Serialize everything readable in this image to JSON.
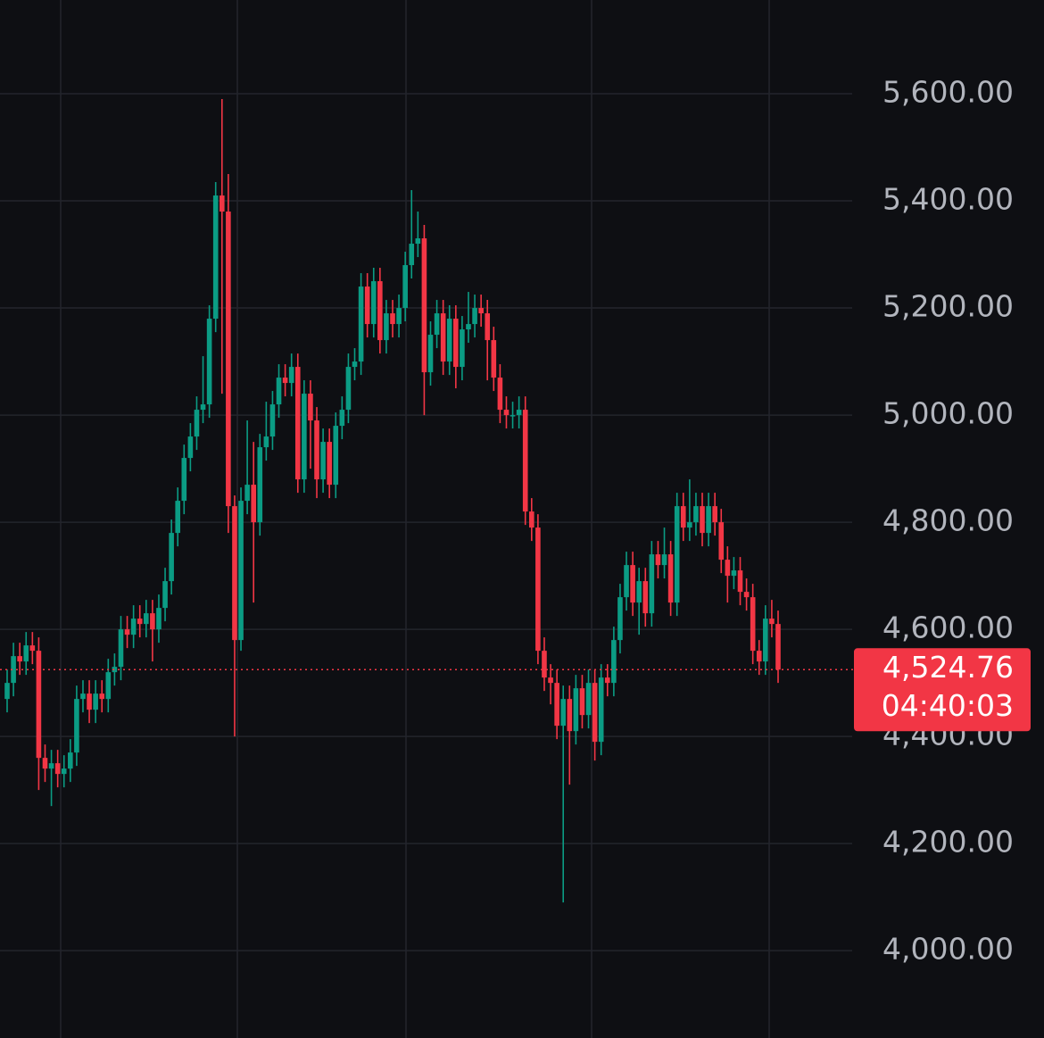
{
  "chart_data": {
    "type": "candlestick",
    "open": [
      4470,
      4500,
      4550,
      4540,
      4570,
      4560,
      4360,
      4340,
      4350,
      4330,
      4340,
      4370,
      4470,
      4480,
      4450,
      4480,
      4470,
      4520,
      4530,
      4600,
      4590,
      4620,
      4610,
      4630,
      4600,
      4640,
      4690,
      4780,
      4840,
      4920,
      4960,
      5010,
      5020,
      5180,
      5410,
      5380,
      4830,
      4580,
      4840,
      4870,
      4800,
      4940,
      4960,
      5020,
      5070,
      5060,
      5090,
      4880,
      5040,
      4990,
      4880,
      4950,
      4870,
      4980,
      5010,
      5090,
      5100,
      5240,
      5170,
      5250,
      5140,
      5190,
      5170,
      5200,
      5280,
      5320,
      5330,
      5080,
      5150,
      5190,
      5100,
      5180,
      5090,
      5160,
      5170,
      5200,
      5190,
      5140,
      5070,
      5010,
      5000,
      5000,
      5010,
      4820,
      4790,
      4560,
      4510,
      4500,
      4420,
      4470,
      4410,
      4490,
      4440,
      4500,
      4390,
      4510,
      4500,
      4580,
      4660,
      4720,
      4650,
      4690,
      4630,
      4740,
      4720,
      4740,
      4650,
      4830,
      4790,
      4800,
      4830,
      4780,
      4830,
      4800,
      4730,
      4700,
      4710,
      4670,
      4660,
      4560,
      4540,
      4620,
      4610
    ],
    "high": [
      4525,
      4575,
      4575,
      4595,
      4595,
      4585,
      4385,
      4375,
      4375,
      4365,
      4395,
      4495,
      4505,
      4505,
      4505,
      4505,
      4545,
      4555,
      4625,
      4625,
      4645,
      4645,
      4655,
      4655,
      4665,
      4715,
      4805,
      4865,
      4945,
      4985,
      5035,
      5110,
      5205,
      5435,
      5590,
      5450,
      4850,
      4865,
      4990,
      4950,
      4965,
      5025,
      5045,
      5095,
      5095,
      5115,
      5115,
      5065,
      5065,
      5015,
      4975,
      4975,
      5005,
      5035,
      5115,
      5125,
      5265,
      5265,
      5275,
      5275,
      5215,
      5215,
      5225,
      5305,
      5420,
      5380,
      5355,
      5175,
      5215,
      5215,
      5205,
      5205,
      5185,
      5230,
      5225,
      5225,
      5215,
      5165,
      5095,
      5035,
      5025,
      5035,
      5035,
      4845,
      4815,
      4585,
      4535,
      4525,
      4495,
      4495,
      4515,
      4515,
      4525,
      4525,
      4535,
      4535,
      4605,
      4685,
      4745,
      4745,
      4715,
      4715,
      4765,
      4765,
      4790,
      4765,
      4855,
      4855,
      4880,
      4855,
      4855,
      4855,
      4855,
      4825,
      4755,
      4735,
      4735,
      4695,
      4685,
      4580,
      4645,
      4655,
      4635
    ],
    "low": [
      4445,
      4475,
      4515,
      4515,
      4535,
      4300,
      4315,
      4270,
      4305,
      4305,
      4315,
      4345,
      4445,
      4425,
      4425,
      4445,
      4445,
      4495,
      4505,
      4565,
      4565,
      4585,
      4585,
      4540,
      4575,
      4615,
      4665,
      4755,
      4815,
      4895,
      4935,
      4985,
      4995,
      5155,
      5040,
      4780,
      4400,
      4560,
      4815,
      4650,
      4775,
      4915,
      4935,
      4995,
      5035,
      5035,
      4855,
      4855,
      4900,
      4845,
      4855,
      4845,
      4845,
      4955,
      4985,
      5065,
      5075,
      5145,
      5145,
      5115,
      5115,
      5145,
      5145,
      5175,
      5255,
      5295,
      5000,
      5055,
      5125,
      5075,
      5075,
      5050,
      5065,
      5135,
      5145,
      5165,
      5065,
      5045,
      4985,
      4975,
      4975,
      4975,
      4795,
      4765,
      4535,
      4485,
      4460,
      4395,
      4090,
      4310,
      4385,
      4415,
      4415,
      4355,
      4365,
      4475,
      4475,
      4555,
      4635,
      4625,
      4590,
      4605,
      4605,
      4695,
      4695,
      4625,
      4625,
      4765,
      4765,
      4775,
      4755,
      4755,
      4775,
      4705,
      4650,
      4675,
      4645,
      4635,
      4535,
      4515,
      4515,
      4585,
      4500
    ],
    "close": [
      4500,
      4550,
      4540,
      4570,
      4560,
      4360,
      4340,
      4350,
      4330,
      4340,
      4370,
      4470,
      4480,
      4450,
      4480,
      4470,
      4520,
      4530,
      4600,
      4590,
      4620,
      4610,
      4630,
      4600,
      4640,
      4690,
      4780,
      4840,
      4920,
      4960,
      5010,
      5020,
      5180,
      5410,
      5380,
      4830,
      4580,
      4840,
      4870,
      4800,
      4940,
      4960,
      5020,
      5070,
      5060,
      5090,
      4880,
      5040,
      4990,
      4880,
      4950,
      4870,
      4980,
      5010,
      5090,
      5100,
      5240,
      5170,
      5250,
      5140,
      5190,
      5170,
      5200,
      5280,
      5320,
      5330,
      5080,
      5150,
      5190,
      5100,
      5180,
      5090,
      5160,
      5170,
      5200,
      5190,
      5140,
      5070,
      5010,
      5000,
      5000,
      5010,
      4820,
      4790,
      4560,
      4510,
      4500,
      4420,
      4470,
      4410,
      4490,
      4440,
      4500,
      4390,
      4510,
      4500,
      4580,
      4660,
      4720,
      4650,
      4690,
      4630,
      4740,
      4720,
      4740,
      4650,
      4830,
      4790,
      4800,
      4830,
      4780,
      4830,
      4800,
      4730,
      4700,
      4710,
      4670,
      4660,
      4560,
      4540,
      4620,
      4610,
      4524.76
    ],
    "up_color": "#0b9c84",
    "down_color": "#f23645",
    "ylim": [
      3837,
      5775
    ],
    "yticks": [
      {
        "value": 4000,
        "label": "4,000.00"
      },
      {
        "value": 4200,
        "label": "4,200.00"
      },
      {
        "value": 4400,
        "label": "4,400.00"
      },
      {
        "value": 4600,
        "label": "4,600.00"
      },
      {
        "value": 4800,
        "label": "4,800.00"
      },
      {
        "value": 5000,
        "label": "5,000.00"
      },
      {
        "value": 5200,
        "label": "5,200.00"
      },
      {
        "value": 5400,
        "label": "5,400.00"
      },
      {
        "value": 5600,
        "label": "5,600.00"
      }
    ],
    "grid": true,
    "last_price": {
      "value": 4524.76,
      "label": "4,524.76"
    },
    "countdown": "04:40:03"
  }
}
